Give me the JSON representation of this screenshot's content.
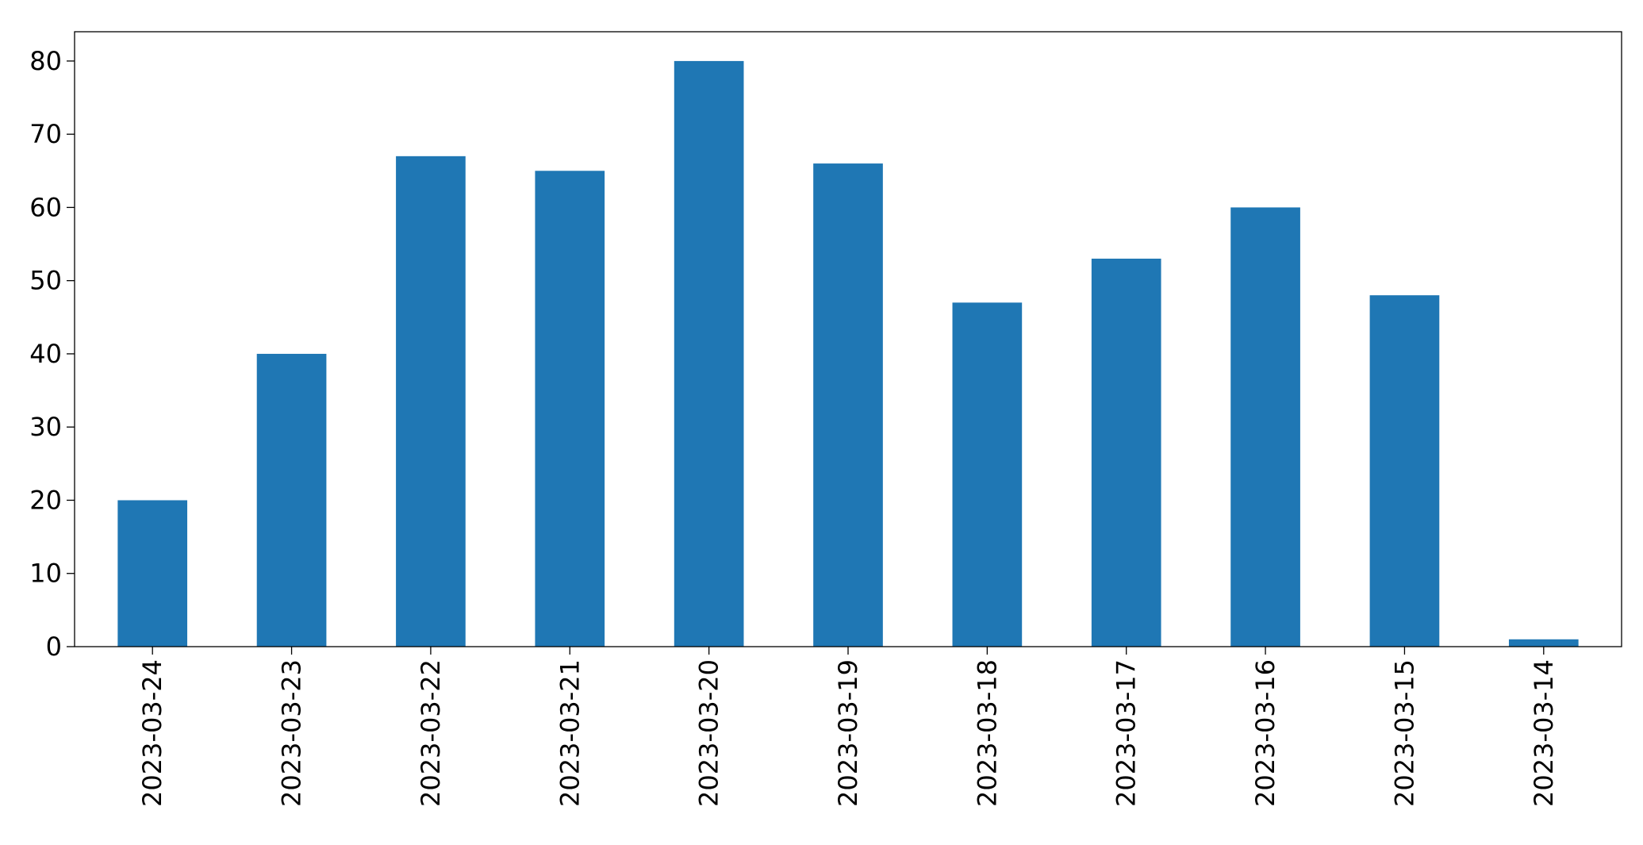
{
  "chart_data": {
    "type": "bar",
    "title": "",
    "xlabel": "",
    "ylabel": "",
    "categories": [
      "2023-03-24",
      "2023-03-23",
      "2023-03-22",
      "2023-03-21",
      "2023-03-20",
      "2023-03-19",
      "2023-03-18",
      "2023-03-17",
      "2023-03-16",
      "2023-03-15",
      "2023-03-14"
    ],
    "values": [
      20,
      40,
      67,
      65,
      80,
      66,
      47,
      53,
      60,
      48,
      1
    ],
    "ylim": [
      0,
      84
    ],
    "yticks": [
      0,
      10,
      20,
      30,
      40,
      50,
      60,
      70,
      80
    ],
    "grid": false,
    "legend": "none",
    "bar_color": "#1f77b4",
    "axis_color": "#000000"
  }
}
